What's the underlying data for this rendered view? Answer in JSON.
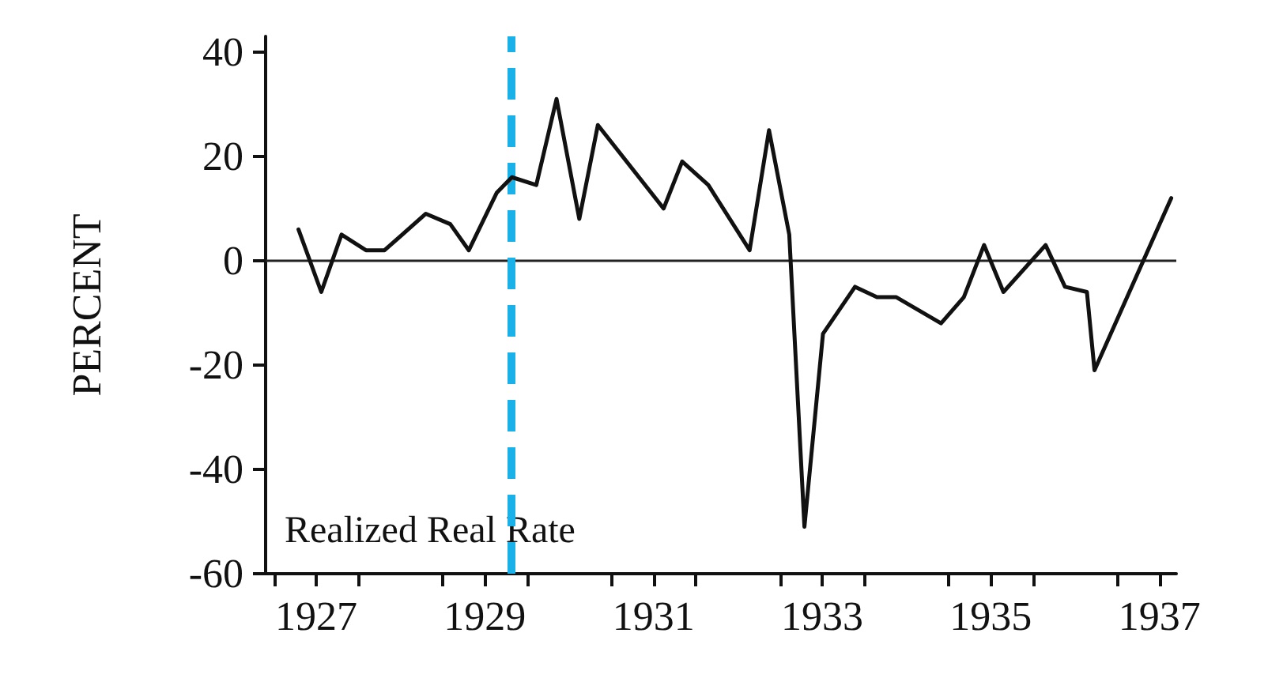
{
  "chart_data": {
    "type": "line",
    "ylabel": "PERCENT",
    "annotations": [
      "Realized Real Rate"
    ],
    "x": [
      1927.29,
      1927.56,
      1927.8,
      1928.09,
      1928.31,
      1928.8,
      1929.09,
      1929.31,
      1929.64,
      1929.82,
      1930.11,
      1930.35,
      1930.62,
      1930.84,
      1931.62,
      1931.84,
      1932.15,
      1932.64,
      1932.87,
      1933.11,
      1933.29,
      1933.51,
      1933.89,
      1934.15,
      1934.38,
      1934.91,
      1935.18,
      1935.42,
      1935.65,
      1936.15,
      1936.38,
      1936.64,
      1936.73,
      1937.64
    ],
    "series": [
      {
        "color": "#111111",
        "values": [
          6,
          -6,
          5,
          2,
          2,
          9,
          7,
          2,
          13,
          16,
          14.5,
          31,
          8,
          26,
          10,
          19,
          14.5,
          2,
          25,
          5,
          -51,
          -14,
          -5,
          -7,
          -7,
          -12,
          -7,
          3,
          -6,
          3,
          -5,
          -6,
          -21,
          12
        ]
      }
    ],
    "xlim": [
      1926.9,
      1937.7
    ],
    "xticks": [
      {
        "value": 1927,
        "label": null
      },
      {
        "value": 1927.5,
        "label": "1927"
      },
      {
        "value": 1928,
        "label": null
      },
      {
        "value": 1929,
        "label": null
      },
      {
        "value": 1929.5,
        "label": "1929"
      },
      {
        "value": 1930,
        "label": null
      },
      {
        "value": 1931,
        "label": null
      },
      {
        "value": 1931.5,
        "label": "1931"
      },
      {
        "value": 1932,
        "label": null
      },
      {
        "value": 1933,
        "label": null
      },
      {
        "value": 1933.5,
        "label": "1933"
      },
      {
        "value": 1934,
        "label": null
      },
      {
        "value": 1935,
        "label": null
      },
      {
        "value": 1935.5,
        "label": "1935"
      },
      {
        "value": 1936,
        "label": null
      },
      {
        "value": 1937,
        "label": null
      },
      {
        "value": 1937.5,
        "label": "1937"
      }
    ],
    "ylim": [
      -60,
      43
    ],
    "yticks": [
      -60,
      -40,
      -20,
      0,
      20,
      40
    ],
    "ref_lines": [
      {
        "axis": "y",
        "value": 0,
        "color": "#222222",
        "line_style": "solid"
      },
      {
        "axis": "x",
        "value": 1929.82,
        "color": "#1ab0e8",
        "line_style": "dashed"
      }
    ],
    "grid": false,
    "marker": "none",
    "line_style": "solid"
  }
}
